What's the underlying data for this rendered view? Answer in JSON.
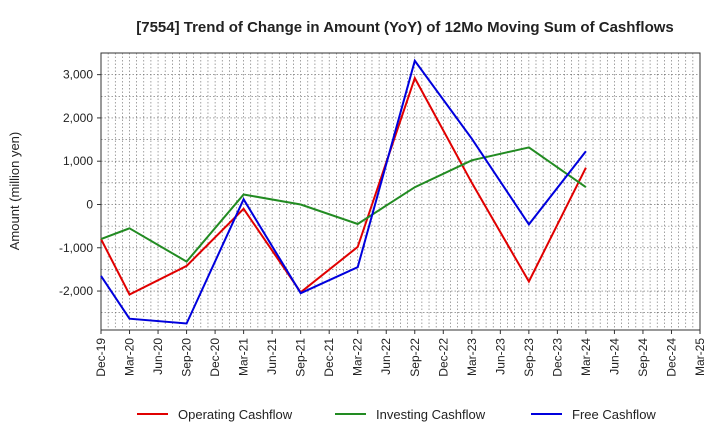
{
  "chart_data": {
    "type": "line",
    "title": "[7554]  Trend of Change in Amount (YoY) of 12Mo Moving Sum of Cashflows",
    "xlabel": "",
    "ylabel": "Amount (million yen)",
    "ylim": [
      -2900,
      3500
    ],
    "yticks": [
      3000,
      2000,
      1000,
      0,
      -1000,
      -2000
    ],
    "ytick_labels": [
      "3,000",
      "2,000",
      "1,000",
      "0",
      "-1,000",
      "-2,000"
    ],
    "categories": [
      "Dec-19",
      "Mar-20",
      "Jun-20",
      "Sep-20",
      "Dec-20",
      "Mar-21",
      "Jun-21",
      "Sep-21",
      "Dec-21",
      "Mar-22",
      "Jun-22",
      "Sep-22",
      "Dec-22",
      "Mar-23",
      "Jun-23",
      "Sep-23",
      "Dec-23",
      "Mar-24",
      "Jun-24",
      "Sep-24",
      "Dec-24",
      "Mar-25"
    ],
    "grid": true,
    "legend_position": "bottom",
    "series": [
      {
        "name": "Operating Cashflow",
        "color": "#e00000",
        "values": [
          -800,
          -2080,
          null,
          -1420,
          null,
          -100,
          null,
          -2030,
          null,
          -980,
          null,
          2920,
          null,
          500,
          null,
          -1780,
          null,
          850,
          null,
          null,
          null,
          null
        ]
      },
      {
        "name": "Investing Cashflow",
        "color": "#228b22",
        "values": [
          -800,
          -550,
          null,
          -1320,
          null,
          230,
          null,
          0,
          null,
          -450,
          null,
          400,
          null,
          1020,
          null,
          1320,
          null,
          400,
          null,
          null,
          null,
          null
        ]
      },
      {
        "name": "Free Cashflow",
        "color": "#0000dd",
        "values": [
          -1650,
          -2640,
          null,
          -2750,
          null,
          120,
          null,
          -2050,
          null,
          -1450,
          null,
          3320,
          null,
          1520,
          null,
          -460,
          null,
          1230,
          null,
          null,
          null,
          null
        ]
      }
    ]
  }
}
